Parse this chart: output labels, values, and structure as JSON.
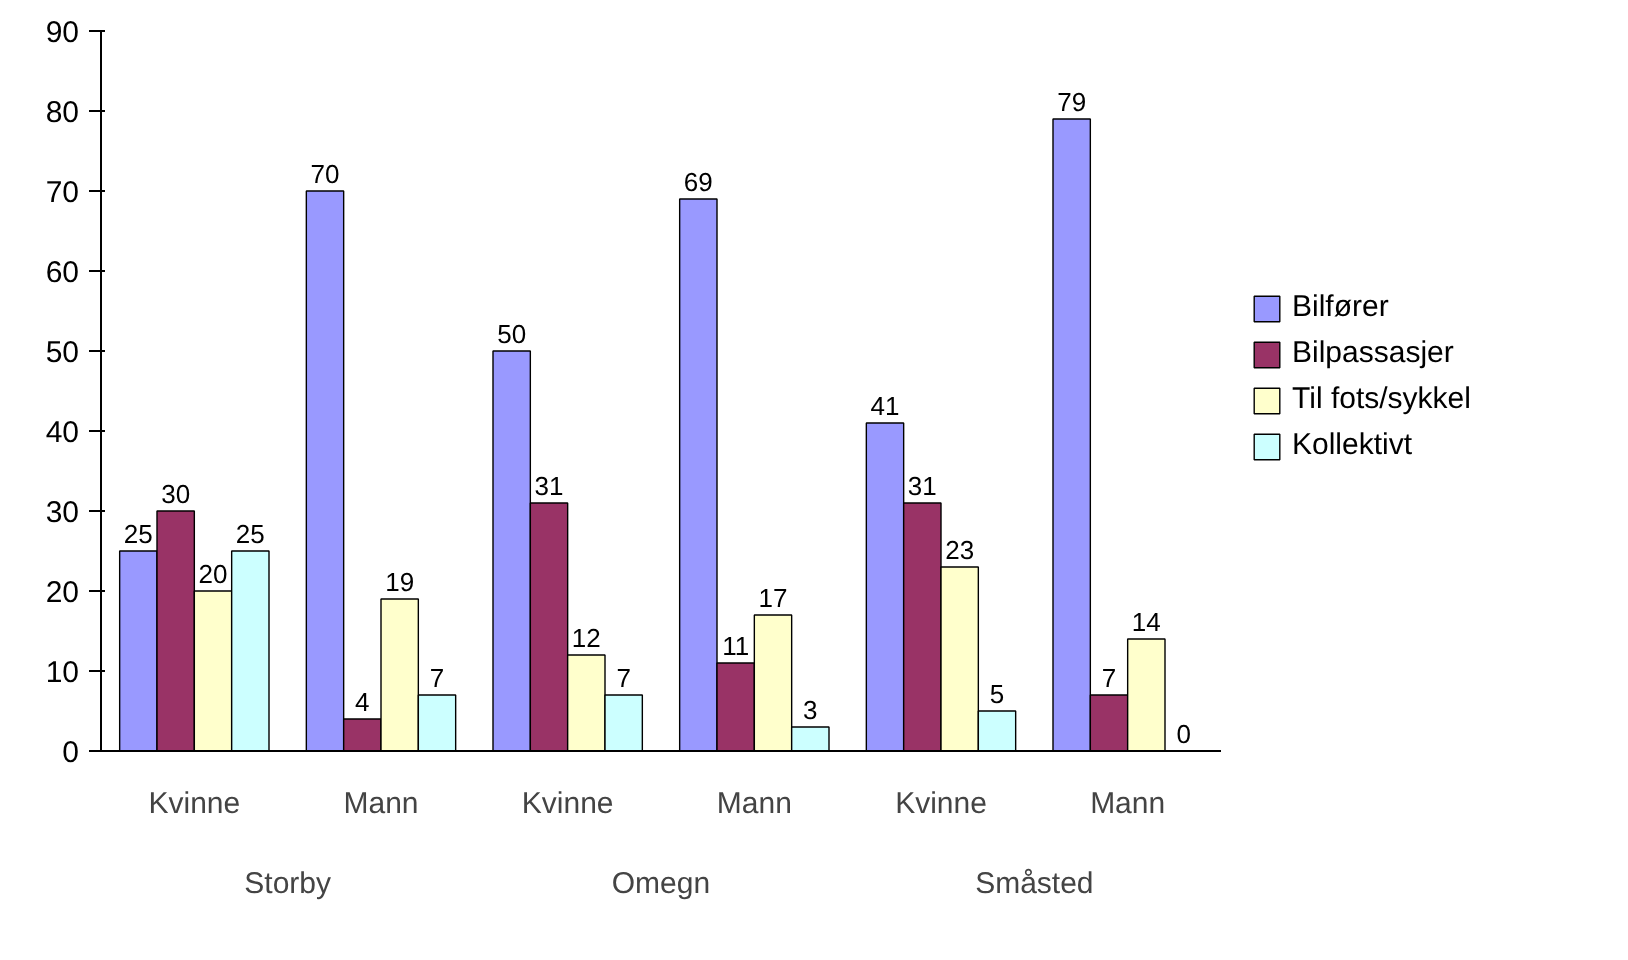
{
  "chart_data": {
    "type": "bar",
    "categories": [
      "Kvinne",
      "Mann",
      "Kvinne",
      "Mann",
      "Kvinne",
      "Mann"
    ],
    "series": [
      {
        "name": "Bilfører",
        "color": "#9999ff",
        "values": [
          25,
          70,
          50,
          69,
          41,
          79
        ]
      },
      {
        "name": "Bilpassasjer",
        "color": "#993366",
        "values": [
          30,
          4,
          31,
          11,
          31,
          7
        ]
      },
      {
        "name": "Til fots/sykkel",
        "color": "#ffffcc",
        "values": [
          20,
          19,
          12,
          17,
          23,
          14
        ]
      },
      {
        "name": "Kollektivt",
        "color": "#ccffff",
        "values": [
          25,
          7,
          7,
          3,
          5,
          0
        ]
      }
    ],
    "annotations": [
      "Storby",
      "Omegn",
      "Småsted"
    ],
    "ylim": [
      0,
      90
    ],
    "yticks": [
      0,
      10,
      20,
      30,
      40,
      50,
      60,
      70,
      80,
      90
    ],
    "data_labels": true,
    "grid": false,
    "legend": "right"
  }
}
